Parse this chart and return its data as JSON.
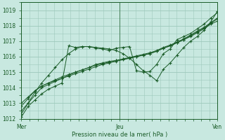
{
  "background_color": "#c8e8e0",
  "plot_bg_color": "#c8e8e0",
  "grid_color": "#9ec8bc",
  "line_color": "#1a5c28",
  "marker_color": "#1a5c28",
  "xlabel": "Pression niveau de la mer( hPa )",
  "ylim": [
    1012,
    1019
  ],
  "yticks": [
    1012,
    1013,
    1014,
    1015,
    1016,
    1017,
    1018,
    1019
  ],
  "xtick_labels": [
    "Mer",
    "Jeu",
    "Ven"
  ],
  "xtick_positions": [
    0,
    24,
    48
  ],
  "x_total": 48,
  "series": [
    [
      1012.1,
      1012.8,
      1013.2,
      1013.6,
      1013.9,
      1014.1,
      1014.3,
      1016.7,
      1016.6,
      1016.65,
      1016.65,
      1016.55,
      1016.5,
      1016.4,
      1016.55,
      1016.6,
      1016.65,
      1015.1,
      1015.0,
      1015.05,
      1015.5,
      1016.2,
      1016.5,
      1017.1,
      1017.3,
      1017.5,
      1017.8,
      1018.1,
      1018.5,
      1018.85
    ],
    [
      1012.5,
      1013.0,
      1013.5,
      1014.0,
      1014.2,
      1014.4,
      1014.6,
      1014.8,
      1015.0,
      1015.15,
      1015.3,
      1015.5,
      1015.6,
      1015.7,
      1015.75,
      1015.85,
      1015.9,
      1016.0,
      1016.1,
      1016.2,
      1016.35,
      1016.55,
      1016.7,
      1016.9,
      1017.1,
      1017.3,
      1017.55,
      1017.8,
      1018.1,
      1018.3
    ],
    [
      1012.8,
      1013.3,
      1013.8,
      1014.1,
      1014.3,
      1014.5,
      1014.7,
      1014.85,
      1015.0,
      1015.15,
      1015.3,
      1015.45,
      1015.55,
      1015.65,
      1015.75,
      1015.85,
      1015.95,
      1016.05,
      1016.15,
      1016.25,
      1016.4,
      1016.6,
      1016.75,
      1016.95,
      1017.15,
      1017.4,
      1017.65,
      1017.9,
      1018.2,
      1018.5
    ],
    [
      1013.0,
      1013.4,
      1013.8,
      1014.1,
      1014.3,
      1014.45,
      1014.6,
      1014.75,
      1014.9,
      1015.05,
      1015.2,
      1015.35,
      1015.5,
      1015.6,
      1015.7,
      1015.8,
      1015.9,
      1016.0,
      1016.1,
      1016.2,
      1016.35,
      1016.55,
      1016.7,
      1016.9,
      1017.1,
      1017.35,
      1017.6,
      1017.85,
      1018.15,
      1018.45
    ],
    [
      1012.3,
      1013.0,
      1013.7,
      1014.3,
      1014.8,
      1015.3,
      1015.8,
      1016.2,
      1016.5,
      1016.65,
      1016.65,
      1016.6,
      1016.55,
      1016.5,
      1016.4,
      1016.2,
      1015.9,
      1015.5,
      1015.1,
      1014.8,
      1014.45,
      1015.2,
      1015.6,
      1016.1,
      1016.6,
      1017.0,
      1017.3,
      1017.7,
      1018.25,
      1018.95
    ]
  ]
}
